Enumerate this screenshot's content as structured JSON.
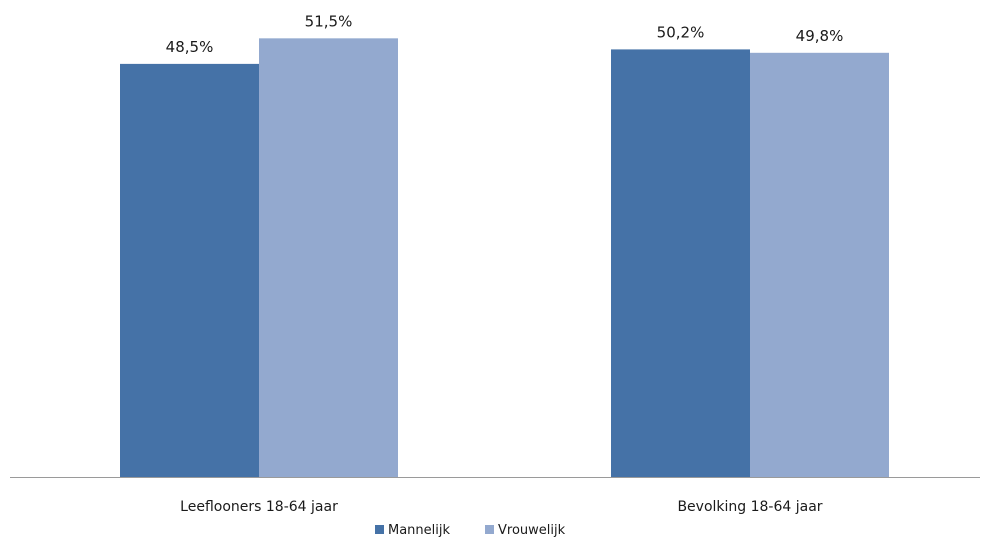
{
  "chart_data": {
    "type": "bar",
    "categories": [
      "Leeflooners 18-64 jaar",
      "Bevolking 18-64 jaar"
    ],
    "series": [
      {
        "name": "Mannelijk",
        "values": [
          48.5,
          50.2
        ],
        "labels": [
          "48,5%",
          "50,2%"
        ],
        "color": "#4572a7"
      },
      {
        "name": "Vrouwelijk",
        "values": [
          51.5,
          49.8
        ],
        "labels": [
          "51,5%",
          "49,8%"
        ],
        "color": "#93a9cf"
      }
    ],
    "ylim": [
      0,
      56
    ],
    "grid": false,
    "legend_position": "bottom"
  }
}
